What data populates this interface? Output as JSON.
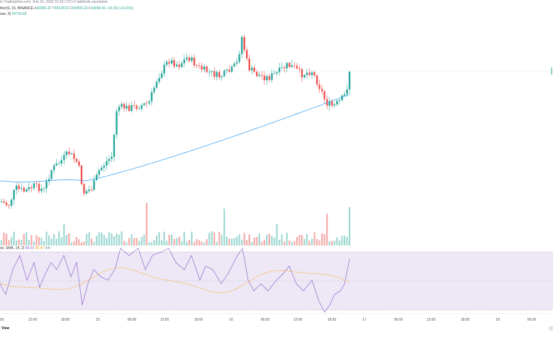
{
  "header": {
    "published_line": "in TradingView.com, Sub 16, 2022 21:16 UTC+2 tarihinde yayınlandı",
    "symbol_line": "ther(S, 15, BINANCE",
    "ohlc": {
      "open_label": "A",
      "open_value": "43999.22",
      "high_label": "Y",
      "high_value": "44128.63",
      "low_label": "D",
      "low_value": "43999.22",
      "close_label": "K",
      "close_value": "44090.91",
      "change": "+91.69 (+0.21%)"
    },
    "ma_line": "ose, 0)",
    "ma_value": "43715.69"
  },
  "rsi_header": {
    "label": "se, SMA, 14, 2)",
    "value1": "66.01",
    "value2": "65.47",
    "value3": "n/d"
  },
  "watermark": "View",
  "colors": {
    "up": "#26a69a",
    "down": "#ef5350",
    "ma": "#2196f3",
    "rsi": "#7e57c2",
    "rsi_ma": "#ffb74d",
    "rsi_band": "#ede7f6"
  },
  "chart_data": {
    "type": "candlestick",
    "x_axis_ticks": [
      "00",
      "12:00",
      "18:00",
      "15",
      "06:00",
      "12:00",
      "18:00",
      "16",
      "06:00",
      "12:00",
      "18:00",
      "17",
      "06:00",
      "12:00",
      "18:00",
      "18",
      "06:00"
    ],
    "ma_range": [
      43050,
      43740
    ],
    "price_range": [
      42780,
      44500
    ],
    "candles_count": 140,
    "rsi": {
      "name": "RSI",
      "levels": [
        70,
        50,
        30
      ],
      "range": [
        20,
        80
      ]
    }
  }
}
